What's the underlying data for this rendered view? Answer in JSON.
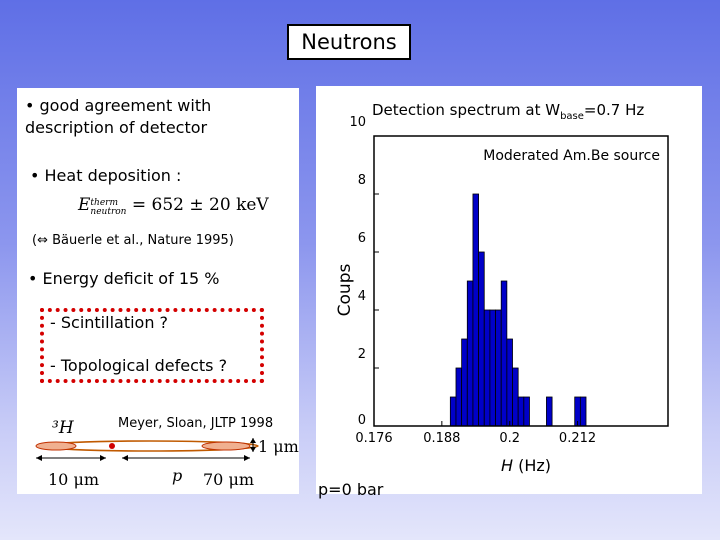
{
  "title": "Neutrons",
  "left": {
    "bullet1_line1": "• good agreement with",
    "bullet1_line2": "description of detector",
    "bullet2": "• Heat deposition :",
    "formula": {
      "lhs": "E",
      "sup": "therm",
      "sub": "neutron",
      "rhs": " = 652 ± 20 keV"
    },
    "reference": "(⇔ Bäuerle et al., Nature 1995)",
    "bullet3": "• Energy deficit of 15 %",
    "item1": "- Scintillation ?",
    "item2": "- Topological defects ?",
    "diagram": {
      "helium": "³H",
      "citation": "Meyer, Sloan, JLTP 1998",
      "size_a": "1 μm",
      "size_b": "10 μm",
      "particle": "p",
      "size_c": "70 μm"
    },
    "colors": {
      "dotted_box": "#d40000"
    }
  },
  "right": {
    "chart_title_main": "Detection spectrum at W",
    "chart_title_sub": "base",
    "chart_title_end": "=0.7 Hz",
    "pressure": "p=0 bar",
    "colors": {
      "bar_fill": "#0000c8"
    }
  },
  "chart_data": {
    "type": "bar",
    "annotation": "Moderated Am.Be source",
    "xlabel_italic": "H",
    "xlabel_unit": " (Hz)",
    "ylabel": "Coups",
    "xlim": [
      0.176,
      0.228
    ],
    "ylim": [
      0,
      10
    ],
    "xticks": [
      "0.176",
      "0.188",
      "0.2",
      "0.212"
    ],
    "xtick_values": [
      0.176,
      0.188,
      0.2,
      0.212
    ],
    "yticks": [
      "0",
      "2",
      "4",
      "6",
      "8",
      "10"
    ],
    "ytick_values": [
      0,
      2,
      4,
      6,
      8,
      10
    ],
    "bin_width": 0.001,
    "bins": [
      {
        "x": 0.19,
        "count": 1
      },
      {
        "x": 0.191,
        "count": 2
      },
      {
        "x": 0.192,
        "count": 3
      },
      {
        "x": 0.193,
        "count": 5
      },
      {
        "x": 0.194,
        "count": 8
      },
      {
        "x": 0.195,
        "count": 6
      },
      {
        "x": 0.196,
        "count": 4
      },
      {
        "x": 0.197,
        "count": 4
      },
      {
        "x": 0.198,
        "count": 4
      },
      {
        "x": 0.199,
        "count": 5
      },
      {
        "x": 0.2,
        "count": 3
      },
      {
        "x": 0.201,
        "count": 2
      },
      {
        "x": 0.202,
        "count": 1
      },
      {
        "x": 0.203,
        "count": 1
      },
      {
        "x": 0.204,
        "count": 0
      },
      {
        "x": 0.205,
        "count": 0
      },
      {
        "x": 0.206,
        "count": 0
      },
      {
        "x": 0.207,
        "count": 1
      },
      {
        "x": 0.208,
        "count": 0
      },
      {
        "x": 0.209,
        "count": 0
      },
      {
        "x": 0.21,
        "count": 0
      },
      {
        "x": 0.211,
        "count": 0
      },
      {
        "x": 0.212,
        "count": 1
      },
      {
        "x": 0.213,
        "count": 1
      }
    ]
  }
}
